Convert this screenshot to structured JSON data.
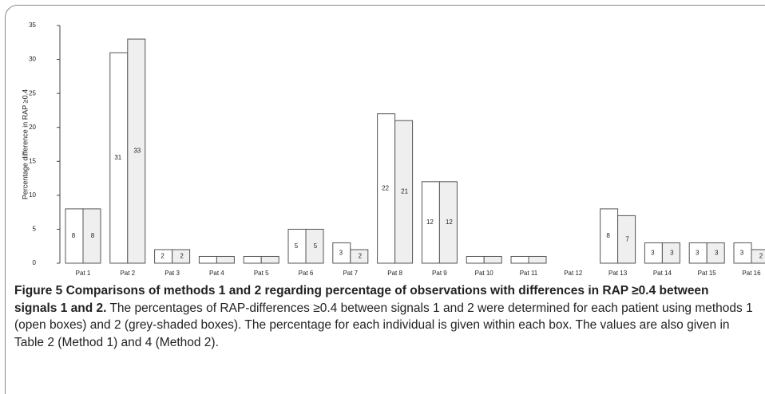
{
  "chart_data": {
    "type": "bar",
    "y_label": "Percentage difference in RAP ≥0.4",
    "categories": [
      "Pat 1",
      "Pat 2",
      "Pat 3",
      "Pat 4",
      "Pat 5",
      "Pat 6",
      "Pat 7",
      "Pat 8",
      "Pat 9",
      "Pat 10",
      "Pat 11",
      "Pat 12",
      "Pat 13",
      "Pat 14",
      "Pat 15",
      "Pat 16"
    ],
    "series": [
      {
        "name": "Method 1",
        "color": "#ffffff",
        "values": [
          8,
          31,
          2,
          1,
          1,
          5,
          3,
          22,
          12,
          1,
          1,
          0,
          8,
          3,
          3,
          3
        ],
        "value_labels": [
          "8",
          "31",
          "2",
          null,
          null,
          "5",
          "3",
          "22",
          "12",
          null,
          null,
          null,
          "8",
          "3",
          "3",
          "3"
        ]
      },
      {
        "name": "Method 2",
        "color": "#efefef",
        "values": [
          8,
          33,
          2,
          1,
          1,
          5,
          2,
          21,
          12,
          1,
          1,
          0,
          7,
          3,
          3,
          2
        ],
        "value_labels": [
          "8",
          "33",
          "2",
          null,
          null,
          "5",
          "2",
          "21",
          "12",
          null,
          null,
          null,
          "7",
          "3",
          "3",
          "2"
        ]
      }
    ],
    "ylim": [
      0,
      35
    ],
    "yticks": [
      0,
      5,
      10,
      15,
      20,
      25,
      30,
      35
    ],
    "grid": false
  },
  "caption": {
    "title": "Figure 5 Comparisons of methods 1 and 2 regarding percentage of observations with differences in RAP ≥0.4 between signals 1 and 2.",
    "text": "The percentages of RAP-differences ≥0.4 between signals 1 and 2 were determined for each patient using methods 1 (open boxes) and 2 (grey-shaded boxes). The percentage for each individual is given within each box. The values are also given in Table 2 (Method 1) and 4 (Method 2)."
  }
}
